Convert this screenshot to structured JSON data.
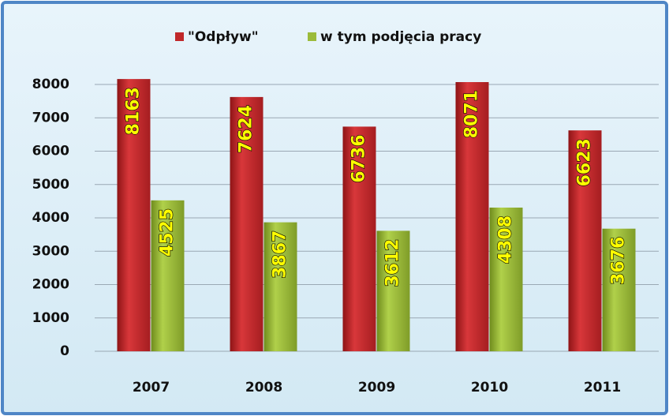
{
  "chart_data": {
    "type": "bar",
    "categories": [
      "2007",
      "2008",
      "2009",
      "2010",
      "2011"
    ],
    "series": [
      {
        "name": "\"Odpływ\"",
        "color": "#c0282a",
        "values": [
          8163,
          7624,
          6736,
          8071,
          6623
        ]
      },
      {
        "name": "w tym podjęcia pracy",
        "color": "#9bbb3a",
        "values": [
          4525,
          3867,
          3612,
          4308,
          3676
        ]
      }
    ],
    "ylim": [
      0,
      8000
    ],
    "yticks": [
      0,
      1000,
      2000,
      3000,
      4000,
      5000,
      6000,
      7000,
      8000
    ],
    "grid": true,
    "legend": "top"
  }
}
